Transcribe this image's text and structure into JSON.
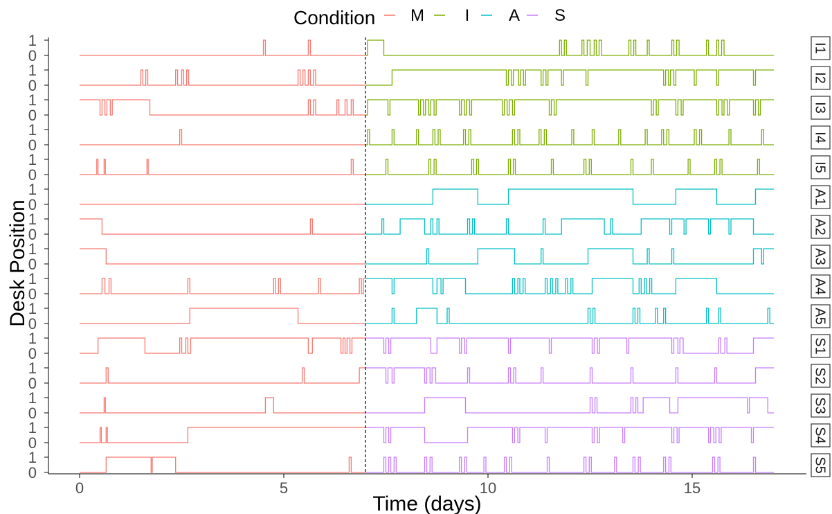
{
  "chart_data": {
    "type": "line",
    "title": "",
    "xlabel": "Time (days)",
    "ylabel": "Desk Position",
    "xlim": [
      -0.9,
      17.9
    ],
    "xticks": [
      0,
      5,
      10,
      15
    ],
    "xtick_labels": [
      "0",
      "5",
      "10",
      "15"
    ],
    "yticks": [
      0,
      1
    ],
    "ytick_labels": [
      "0",
      "1"
    ],
    "grid": false,
    "legend": {
      "title": "Condition",
      "placement": "top",
      "entries": [
        {
          "label": "M",
          "color": "#F8766D"
        },
        {
          "label": "I",
          "color": "#7CAE00"
        },
        {
          "label": "A",
          "color": "#00BFC4"
        },
        {
          "label": "S",
          "color": "#C77CFF"
        }
      ]
    },
    "phase_divider_x": 7.0,
    "panels": [
      {
        "label": "I1",
        "condition": "I",
        "initial": 0,
        "end": 17,
        "transitions": [
          4.5,
          4.55,
          5.6,
          5.65,
          7.05,
          7.45,
          11.75,
          11.8,
          11.87,
          11.92,
          12.3,
          12.35,
          12.43,
          12.5,
          12.6,
          12.65,
          12.72,
          12.78,
          13.45,
          13.5,
          13.57,
          13.62,
          13.9,
          13.95,
          14.5,
          14.55,
          14.62,
          14.68,
          15.35,
          15.4,
          15.6,
          15.65,
          15.72,
          15.78
        ]
      },
      {
        "label": "I2",
        "condition": "I",
        "initial": 0,
        "end": 17,
        "transitions": [
          1.5,
          1.55,
          1.62,
          1.67,
          2.35,
          2.4,
          2.5,
          2.55,
          2.62,
          2.67,
          5.35,
          5.4,
          5.47,
          5.52,
          5.6,
          5.65,
          5.73,
          5.78,
          7.65,
          10.45,
          10.5,
          10.57,
          10.62,
          10.75,
          10.8,
          10.87,
          10.92,
          11.3,
          11.35,
          11.42,
          11.47,
          11.8,
          11.85,
          12.4,
          12.45,
          14.3,
          14.35,
          14.42,
          14.47,
          14.55,
          14.6,
          15.05,
          15.1,
          15.6,
          15.65,
          16.5,
          16.55
        ]
      },
      {
        "label": "I3",
        "condition": "I",
        "initial": 1,
        "end": 17,
        "transitions": [
          0.5,
          0.55,
          0.62,
          0.67,
          0.75,
          0.8,
          1.72,
          5.6,
          5.65,
          5.73,
          5.78,
          6.3,
          6.35,
          6.5,
          6.55,
          6.65,
          6.7,
          7.05,
          7.55,
          7.6,
          8.3,
          8.35,
          8.42,
          8.47,
          8.55,
          8.6,
          8.68,
          8.73,
          9.3,
          9.35,
          9.42,
          9.47,
          9.55,
          9.6,
          10.35,
          10.4,
          10.47,
          10.52,
          10.6,
          10.65,
          11.5,
          11.55,
          11.62,
          11.67,
          14.0,
          14.05,
          14.12,
          14.17,
          14.6,
          14.65,
          14.73,
          14.78,
          15.6,
          15.65,
          15.73,
          15.78,
          15.86,
          15.91,
          16.5,
          16.55,
          16.62,
          16.67
        ]
      },
      {
        "label": "I4",
        "condition": "I",
        "initial": 0,
        "end": 17,
        "transitions": [
          2.45,
          2.5,
          7.05,
          7.1,
          7.65,
          7.7,
          8.25,
          8.3,
          8.65,
          8.7,
          8.78,
          8.83,
          9.4,
          9.45,
          9.53,
          9.58,
          10.6,
          10.65,
          10.73,
          10.78,
          11.25,
          11.3,
          11.38,
          11.43,
          12.05,
          12.1,
          12.55,
          12.6,
          13.2,
          13.25,
          13.85,
          13.9,
          14.25,
          14.3,
          14.38,
          14.43,
          15.05,
          15.1,
          15.18,
          15.23,
          15.9,
          15.95,
          16.7,
          16.75
        ]
      },
      {
        "label": "I5",
        "condition": "I",
        "initial": 0,
        "end": 17,
        "transitions": [
          0.42,
          0.45,
          0.6,
          0.63,
          1.65,
          1.68,
          6.65,
          6.7,
          7.5,
          7.55,
          8.55,
          8.6,
          8.68,
          8.73,
          9.6,
          9.65,
          9.72,
          9.77,
          10.5,
          10.55,
          10.62,
          10.67,
          11.55,
          11.6,
          12.35,
          12.4,
          12.48,
          12.53,
          13.5,
          13.55,
          14.0,
          14.05,
          14.9,
          14.95,
          15.55,
          15.6,
          15.68,
          15.73,
          16.6,
          16.65
        ]
      },
      {
        "label": "A1",
        "condition": "A",
        "initial": 0,
        "end": 17,
        "transitions": [
          8.65,
          9.75,
          10.5,
          13.55,
          14.6,
          15.6,
          16.55
        ]
      },
      {
        "label": "A2",
        "condition": "A",
        "initial": 1,
        "end": 17,
        "transitions": [
          0.55,
          5.65,
          5.7,
          7.4,
          7.45,
          7.85,
          8.45,
          8.6,
          8.65,
          8.75,
          8.8,
          9.5,
          9.55,
          9.62,
          9.67,
          10.45,
          10.5,
          11.35,
          11.4,
          11.8,
          12.85,
          13.0,
          13.05,
          13.75,
          14.45,
          14.5,
          14.8,
          14.85,
          15.4,
          15.45,
          15.9,
          15.95,
          16.5
        ]
      },
      {
        "label": "A3",
        "condition": "A",
        "initial": 1,
        "end": 17,
        "transitions": [
          0.65,
          8.5,
          8.55,
          9.75,
          10.65,
          11.3,
          11.35,
          12.45,
          13.55,
          13.9,
          13.95,
          14.5,
          14.55,
          16.5,
          16.7,
          16.75
        ]
      },
      {
        "label": "A4",
        "condition": "A",
        "initial": 0,
        "end": 17,
        "transitions": [
          0.55,
          0.62,
          0.72,
          0.77,
          2.65,
          2.7,
          4.75,
          4.8,
          4.87,
          4.92,
          5.85,
          5.9,
          6.85,
          6.9,
          6.95,
          7.0,
          7.65,
          7.7,
          8.65,
          8.75,
          8.85,
          8.9,
          9.45,
          10.6,
          10.65,
          10.73,
          10.78,
          10.86,
          10.91,
          11.4,
          11.45,
          11.53,
          11.58,
          11.66,
          11.71,
          11.9,
          11.95,
          12.03,
          12.08,
          12.55,
          13.55,
          13.7,
          13.75,
          13.83,
          13.88,
          13.96,
          14.01,
          14.6,
          15.6
        ]
      },
      {
        "label": "A5",
        "condition": "A",
        "initial": 0,
        "end": 17,
        "transitions": [
          2.7,
          5.35,
          7.65,
          7.7,
          8.25,
          8.75,
          9.0,
          9.05,
          12.45,
          12.5,
          12.57,
          12.62,
          13.55,
          13.6,
          13.67,
          13.72,
          14.1,
          14.15,
          14.3,
          14.35,
          15.35,
          15.4,
          15.65,
          15.7,
          16.85,
          16.9
        ]
      },
      {
        "label": "S1",
        "condition": "S",
        "initial": 0,
        "end": 17,
        "transitions": [
          0.45,
          1.6,
          2.45,
          2.5,
          2.6,
          2.65,
          2.72,
          5.6,
          5.7,
          6.4,
          6.45,
          6.5,
          6.55,
          6.62,
          6.67,
          7.45,
          7.5,
          7.57,
          7.62,
          8.6,
          8.75,
          9.3,
          9.35,
          9.43,
          9.48,
          10.5,
          10.55,
          11.5,
          11.55,
          12.55,
          12.6,
          12.68,
          12.73,
          13.4,
          13.45,
          14.5,
          14.55,
          14.65,
          14.7,
          14.78,
          15.65,
          15.7,
          15.8,
          15.85,
          16.5
        ]
      },
      {
        "label": "S2",
        "condition": "S",
        "initial": 0,
        "end": 17,
        "transitions": [
          0.65,
          0.7,
          5.45,
          5.5,
          6.85,
          7.5,
          7.55,
          7.65,
          7.7,
          8.45,
          8.5,
          8.58,
          8.63,
          8.72,
          9.5,
          9.55,
          10.5,
          10.55,
          10.63,
          10.68,
          11.3,
          11.35,
          12.5,
          12.55,
          13.5,
          13.55,
          14.6,
          14.65,
          15.55,
          15.6,
          16.55
        ]
      },
      {
        "label": "S3",
        "condition": "S",
        "initial": 0,
        "end": 17,
        "transitions": [
          0.6,
          0.63,
          4.55,
          4.75,
          8.45,
          9.45,
          12.5,
          12.55,
          12.62,
          12.67,
          13.5,
          13.55,
          13.62,
          13.67,
          13.8,
          14.45,
          14.65,
          16.35,
          16.4,
          16.85
        ]
      },
      {
        "label": "S4",
        "condition": "S",
        "initial": 0,
        "end": 17,
        "transitions": [
          0.5,
          0.53,
          0.65,
          0.68,
          2.65,
          7.45,
          7.5,
          7.57,
          7.62,
          8.45,
          9.5,
          10.6,
          10.65,
          10.73,
          10.78,
          11.4,
          11.45,
          12.55,
          12.6,
          12.68,
          12.73,
          13.3,
          13.35,
          14.5,
          14.55,
          14.63,
          14.68,
          15.4,
          15.45,
          15.53,
          15.58,
          15.66,
          15.71,
          16.45,
          16.5
        ]
      },
      {
        "label": "S5",
        "condition": "S",
        "initial": 0,
        "end": 17,
        "transitions": [
          0.65,
          1.75,
          1.78,
          2.35,
          6.6,
          6.65,
          7.45,
          7.5,
          7.57,
          7.62,
          7.7,
          7.75,
          8.45,
          8.5,
          8.58,
          8.63,
          9.3,
          9.35,
          9.43,
          9.48,
          9.9,
          9.95,
          10.4,
          10.45,
          10.53,
          10.58,
          11.45,
          11.5,
          12.35,
          12.4,
          12.48,
          12.53,
          13.1,
          13.15,
          13.55,
          13.6,
          13.68,
          13.73,
          14.3,
          14.35,
          14.43,
          14.48,
          15.5,
          15.55,
          15.63,
          15.68,
          16.5,
          16.55
        ]
      }
    ]
  }
}
